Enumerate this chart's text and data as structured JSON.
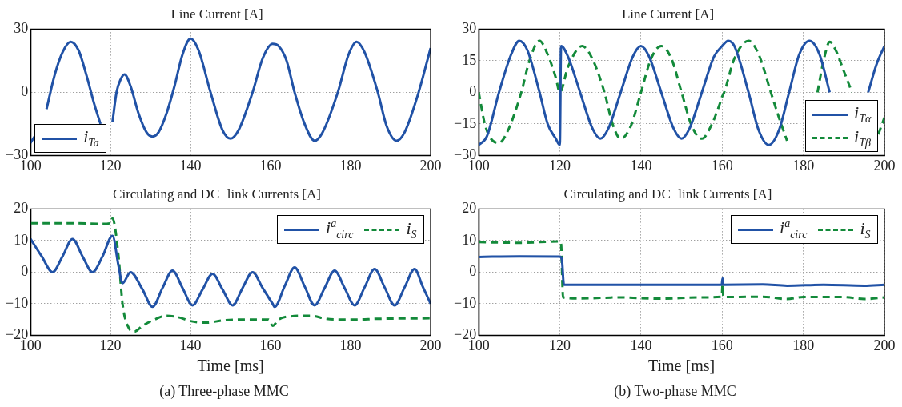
{
  "chart_data": [
    {
      "type": "line",
      "title": "Line Current [A]",
      "xlim": [
        100,
        200
      ],
      "xticks": [
        100,
        120,
        140,
        160,
        180,
        200
      ],
      "ylim": [
        -30,
        30
      ],
      "yticks": [
        {
          "value": -30,
          "label": "−30"
        },
        0,
        30
      ],
      "grid": true,
      "legend": "bottom left",
      "marker": "none",
      "series": [
        {
          "name": "i$_{Ta}$",
          "color": "#2152a6",
          "line_style": "solid",
          "x": [
            100,
            101,
            102,
            104,
            106,
            108,
            110,
            112,
            114,
            116,
            117.5,
            119,
            120.5,
            121.5,
            122.5,
            123.5,
            125,
            127,
            129,
            130.5,
            132,
            134,
            136,
            138,
            140,
            142,
            145,
            148,
            150,
            152,
            155.5,
            158,
            160.5,
            162,
            164,
            166,
            168.5,
            171,
            173,
            176.8,
            179.5,
            181.5,
            183.5,
            186.8,
            189,
            191.5,
            193.5,
            197,
            200
          ],
          "values": [
            -24,
            -21,
            null,
            -8,
            8,
            19,
            24,
            20,
            8,
            -6,
            -15,
            null,
            -14,
            0,
            6,
            8.5,
            3,
            -10,
            -19,
            -21,
            -19,
            -10,
            3,
            18,
            25.5,
            20,
            0,
            -18,
            -22,
            -18,
            0,
            16,
            23,
            22,
            15,
            0,
            -15,
            -23,
            -19,
            0,
            18,
            24,
            19,
            0,
            -16,
            -23,
            -19,
            0,
            21
          ]
        }
      ]
    },
    {
      "type": "line",
      "title": "Line Current [A]",
      "xlim": [
        100,
        200
      ],
      "xticks": [
        100,
        120,
        140,
        160,
        180,
        200
      ],
      "ylim": [
        -30,
        30
      ],
      "yticks": [
        {
          "value": -30,
          "label": "−30"
        },
        {
          "value": -15,
          "label": "−15"
        },
        0,
        15,
        30
      ],
      "grid": true,
      "legend": "bottom right",
      "marker": "none",
      "series": [
        {
          "name": "i$_{Tα}$",
          "color": "#2152a6",
          "line_style": "solid",
          "x": [
            100,
            102,
            105,
            108,
            110,
            112,
            115,
            117,
            119,
            120,
            120.3,
            122,
            125,
            128,
            130,
            132,
            135,
            138,
            140,
            142,
            145,
            148,
            150,
            152,
            155,
            158,
            160,
            161.5,
            163,
            166.5,
            169,
            171.5,
            174,
            176.5,
            179,
            181.5,
            184,
            186.5,
            188,
            196,
            198,
            200
          ],
          "values": [
            -25,
            -21,
            0,
            18,
            24.5,
            20,
            0,
            -15,
            -22,
            -25,
            22,
            17,
            0,
            -17,
            -22,
            -17,
            0,
            17,
            22,
            17,
            0,
            -17,
            -22,
            -17,
            0,
            17,
            22,
            24.5,
            22,
            0,
            -18,
            -25,
            -18,
            0,
            18,
            24.5,
            18,
            0,
            null,
            0,
            13,
            22
          ]
        },
        {
          "name": "i$_{Tβ}$",
          "color": "#138a3a",
          "line_style": "dashed",
          "x": [
            100,
            101.5,
            103,
            105,
            107,
            110.5,
            112.5,
            115,
            117,
            119,
            120,
            122,
            125.5,
            128,
            131,
            133,
            135,
            137.5,
            140,
            142.5,
            145,
            147.5,
            150,
            152.5,
            155,
            157.5,
            159.5,
            160,
            160.5,
            163,
            166.5,
            169,
            172,
            174,
            176,
            177.5,
            183.5,
            185,
            186.5,
            188,
            190,
            192,
            194,
            198.5,
            200
          ],
          "values": [
            0,
            -15,
            -22,
            -24,
            -19,
            0,
            15,
            24.5,
            18,
            7,
            0,
            12,
            22,
            16,
            0,
            -15,
            -22,
            -16,
            0,
            16,
            22,
            16,
            0,
            -16,
            -22,
            -15,
            -5,
            -2,
            0,
            16,
            24.5,
            18,
            0,
            -12,
            -23,
            null,
            0,
            15,
            24,
            20,
            10,
            0,
            null,
            -20,
            -12
          ]
        }
      ]
    },
    {
      "type": "line",
      "title": "Circulating and DC−link Currents [A]",
      "xlabel": "Time [ms]",
      "xlim": [
        100,
        200
      ],
      "xticks": [
        100,
        120,
        140,
        160,
        180,
        200
      ],
      "ylim": [
        -20,
        20
      ],
      "yticks": [
        {
          "value": -20,
          "label": "−20"
        },
        {
          "value": -10,
          "label": "−10"
        },
        0,
        10,
        20
      ],
      "grid": true,
      "legend": "top right",
      "marker": "none",
      "annotations": [
        "(a) Three-phase MMC"
      ],
      "series": [
        {
          "name": "i$^{a}$$_{circ}$",
          "color": "#2152a6",
          "line_style": "solid",
          "x": [
            100,
            102.8,
            105.5,
            108,
            110.5,
            113,
            115.5,
            118,
            120.5,
            122,
            123,
            125,
            128,
            130.5,
            133,
            135.5,
            138,
            140.5,
            143,
            145.5,
            148,
            150.5,
            153,
            155.5,
            158,
            160.5,
            161,
            163.5,
            166,
            168.5,
            171,
            173.5,
            176,
            178.5,
            181,
            183.5,
            186,
            188.5,
            191,
            193.5,
            196,
            198,
            200
          ],
          "values": [
            10.5,
            5,
            0,
            5,
            10.5,
            5,
            0,
            5,
            11.5,
            2,
            -3.5,
            0,
            -5.5,
            -11,
            -5,
            0.5,
            -5,
            -10.5,
            -5.5,
            -0.5,
            -5.5,
            -10.5,
            -5,
            0,
            -5,
            -10,
            -11,
            -4.5,
            1.5,
            -4.5,
            -10.5,
            -5,
            0.5,
            -5,
            -10.5,
            -4.8,
            1,
            -4.8,
            -10.5,
            -4.8,
            1,
            -4.5,
            -10
          ]
        },
        {
          "name": "i$_{S}$",
          "color": "#138a3a",
          "line_style": "dashed",
          "x": [
            100,
            110,
            118,
            120,
            120.5,
            122,
            123,
            124.5,
            126,
            128,
            131,
            134,
            137,
            140,
            144,
            148,
            155,
            159.5,
            160.5,
            162,
            165,
            170,
            174,
            178,
            182,
            186,
            190,
            200
          ],
          "values": [
            15.5,
            15.5,
            15.3,
            15.5,
            17,
            5,
            -10,
            -17.5,
            -18.8,
            -17,
            -15,
            -13.8,
            -14.3,
            -15.5,
            -16,
            -15.3,
            -15,
            -15,
            -17,
            -15,
            -14,
            -13.8,
            -14.8,
            -15,
            -15,
            -14.8,
            -14.7,
            -14.6
          ]
        }
      ]
    },
    {
      "type": "line",
      "title": "Circulating and DC−link Currents [A]",
      "xlabel": "Time [ms]",
      "xlim": [
        100,
        200
      ],
      "xticks": [
        100,
        120,
        140,
        160,
        180,
        200
      ],
      "ylim": [
        -20,
        20
      ],
      "yticks": [
        {
          "value": -20,
          "label": "−20"
        },
        {
          "value": -10,
          "label": "−10"
        },
        0,
        10,
        20
      ],
      "grid": true,
      "legend": "top right",
      "marker": "none",
      "annotations": [
        "(b) Two-phase MMC"
      ],
      "series": [
        {
          "name": "i$^{a}$$_{circ}$",
          "color": "#2152a6",
          "line_style": "solid",
          "x": [
            100,
            110,
            120,
            120.5,
            121,
            130,
            140,
            150,
            159.9,
            160.1,
            160.3,
            170,
            176,
            185,
            195,
            200
          ],
          "values": [
            4.8,
            5,
            4.9,
            4,
            -4,
            -4,
            -4,
            -4,
            -4,
            -2,
            -4,
            -3.9,
            -4.3,
            -4,
            -4.3,
            -4
          ]
        },
        {
          "name": "i$_{S}$",
          "color": "#138a3a",
          "line_style": "dashed",
          "x": [
            100,
            110,
            120,
            120.3,
            120.8,
            125,
            135,
            144,
            155,
            159.9,
            160.1,
            160.3,
            170,
            176,
            180,
            190,
            195,
            200
          ],
          "values": [
            9.5,
            9.3,
            9.7,
            9,
            -8,
            -8.3,
            -8,
            -8.4,
            -8,
            -7.8,
            -4,
            -7.9,
            -7.8,
            -8.5,
            -7.9,
            -7.9,
            -8.5,
            -8
          ]
        }
      ]
    }
  ]
}
